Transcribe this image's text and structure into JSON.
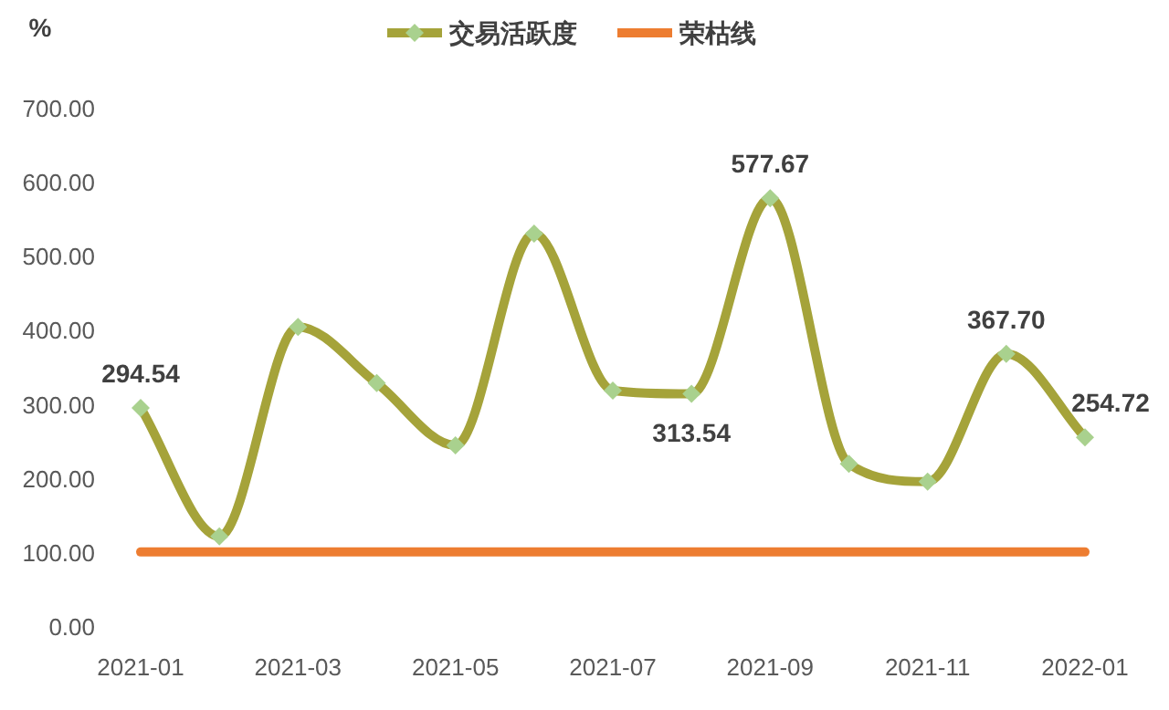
{
  "chart_data": {
    "type": "line",
    "ylabel": "%",
    "categories": [
      "2021-01",
      null,
      "2021-03",
      null,
      "2021-05",
      null,
      "2021-07",
      null,
      "2021-09",
      null,
      "2021-11",
      null,
      "2022-01"
    ],
    "series": [
      {
        "name": "交易活跃度",
        "color": "#a5a33a",
        "marker": "diamond",
        "values": [
          294.54,
          121,
          404,
          328,
          244,
          530,
          318,
          313.54,
          577.67,
          219,
          195,
          367.7,
          254.72
        ],
        "value_labels": [
          "294.54",
          null,
          null,
          null,
          null,
          null,
          null,
          "313.54",
          "577.67",
          null,
          null,
          "367.70",
          "254.72"
        ]
      },
      {
        "name": "荣枯线",
        "color": "#ed7d31",
        "marker": "none",
        "values": [
          100,
          100,
          100,
          100,
          100,
          100,
          100,
          100,
          100,
          100,
          100,
          100,
          100
        ]
      }
    ],
    "ylim": [
      0,
      700
    ],
    "yticks": [
      {
        "value": 0,
        "label": "0.00"
      },
      {
        "value": 100,
        "label": "100.00"
      },
      {
        "value": 200,
        "label": "200.00"
      },
      {
        "value": 300,
        "label": "300.00"
      },
      {
        "value": 400,
        "label": "400.00"
      },
      {
        "value": 500,
        "label": "500.00"
      },
      {
        "value": 600,
        "label": "600.00"
      },
      {
        "value": 700,
        "label": "700.00"
      }
    ],
    "grid": false,
    "legend": "top"
  }
}
